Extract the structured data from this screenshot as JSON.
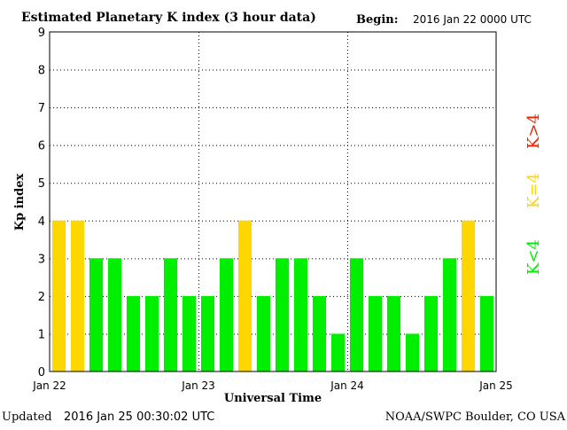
{
  "title": "Estimated Planetary K index (3 hour data)",
  "begin": {
    "label": "Begin:",
    "value": "2016 Jan 22 0000 UTC"
  },
  "updated": {
    "label": "Updated",
    "value": "2016 Jan 25 00:30:02 UTC"
  },
  "source": "NOAA/SWPC Boulder, CO USA",
  "legend": [
    {
      "label": "K<4",
      "color": "#00ee00"
    },
    {
      "label": "K=4",
      "color": "#ffd700"
    },
    {
      "label": "K>4",
      "color": "#ee2200"
    }
  ],
  "chart_data": {
    "type": "bar",
    "title": "Estimated Planetary K index (3 hour data)",
    "xlabel": "Universal Time",
    "ylabel": "Kp index",
    "ylim": [
      0,
      9
    ],
    "yticks": [
      "0",
      "1",
      "2",
      "3",
      "4",
      "5",
      "6",
      "7",
      "8",
      "9"
    ],
    "xticks": [
      "Jan 22",
      "Jan 23",
      "Jan 24",
      "Jan 25"
    ],
    "grid": true,
    "values": [
      4,
      4,
      3,
      3,
      2,
      2,
      3,
      2,
      2,
      3,
      4,
      2,
      3,
      3,
      2,
      1,
      3,
      2,
      2,
      1,
      2,
      3,
      4,
      2
    ]
  }
}
